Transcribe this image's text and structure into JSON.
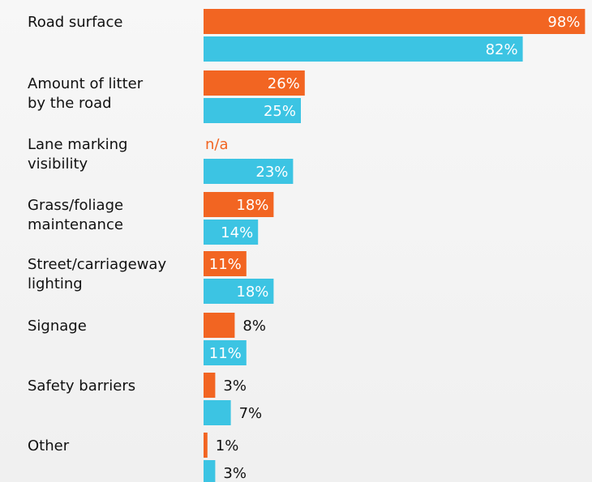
{
  "colors": {
    "series_a": "#f26522",
    "series_b": "#3cc4e3",
    "label_inside": "#ffffff",
    "label_outside": "#111111",
    "na_label": "#f26522"
  },
  "chart_data": {
    "type": "bar",
    "orientation": "horizontal",
    "categories": [
      [
        "Road surface"
      ],
      [
        "Amount of litter",
        "by the road"
      ],
      [
        "Lane marking",
        "visibility"
      ],
      [
        "Grass/foliage",
        "maintenance"
      ],
      [
        "Street/carriageway",
        "lighting"
      ],
      [
        "Signage"
      ],
      [
        "Safety barriers"
      ],
      [
        "Other"
      ]
    ],
    "series": [
      {
        "values": [
          98,
          26,
          null,
          18,
          11,
          8,
          3,
          1
        ],
        "labels": [
          "98%",
          "26%",
          "n/a",
          "18%",
          "11%",
          "8%",
          "3%",
          "1%"
        ]
      },
      {
        "values": [
          82,
          25,
          23,
          14,
          18,
          11,
          7,
          3
        ],
        "labels": [
          "82%",
          "25%",
          "23%",
          "14%",
          "18%",
          "11%",
          "7%",
          "3%"
        ]
      }
    ],
    "xlim": [
      0,
      100
    ],
    "grid": false,
    "legend": "none"
  }
}
